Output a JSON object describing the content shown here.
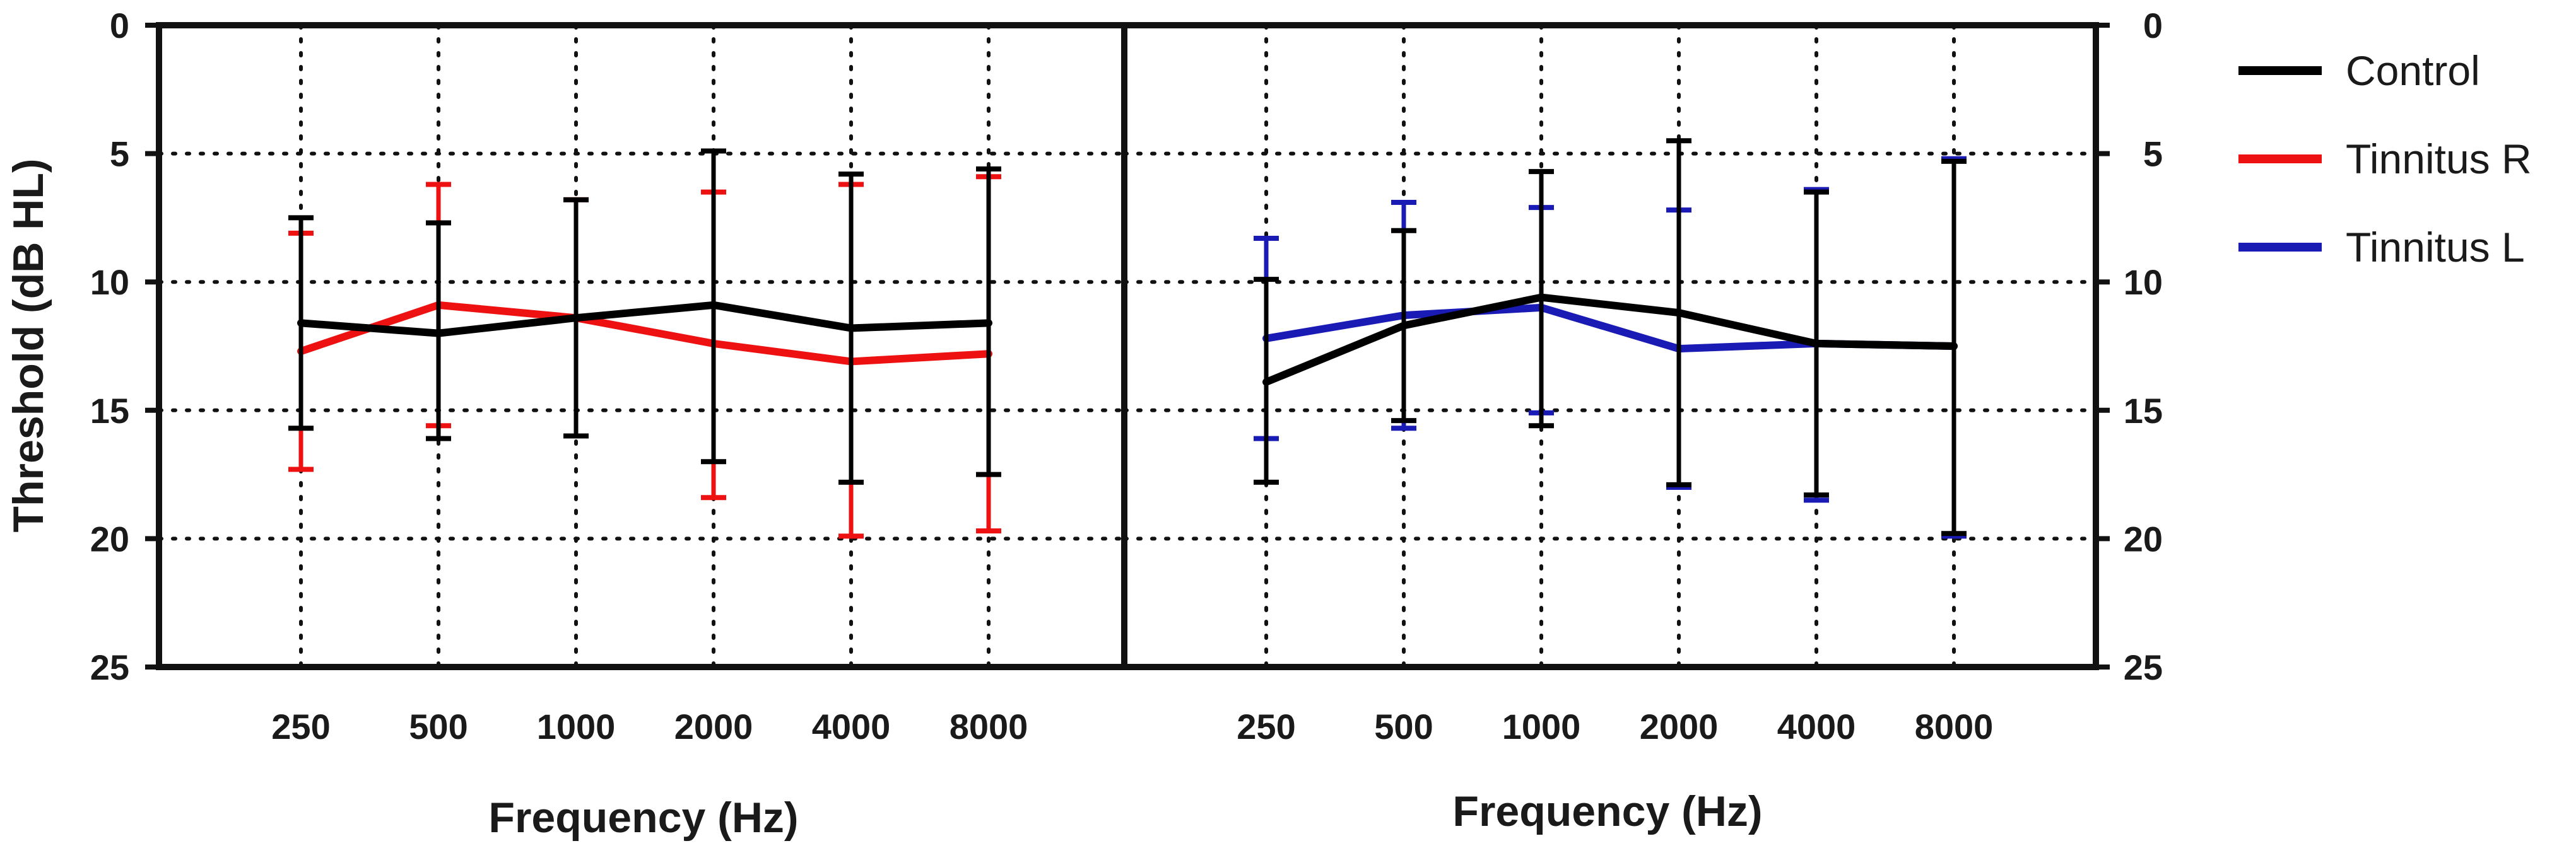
{
  "chart_data": {
    "type": "line",
    "ylabel": "Threshold (dB HL)",
    "xlabel": "Frequency (Hz)",
    "categories": [
      "250",
      "500",
      "1000",
      "2000",
      "4000",
      "8000"
    ],
    "ylim": [
      0,
      25
    ],
    "y_ticks": [
      "0",
      "5",
      "10",
      "15",
      "20",
      "25"
    ],
    "y_inverted": true,
    "grid": true,
    "legend": {
      "placement": "right",
      "entries": [
        {
          "name": "Control",
          "color": "#000000"
        },
        {
          "name": "Tinnitus R",
          "color": "#ee1111"
        },
        {
          "name": "Tinnitus L",
          "color": "#1a1ab5"
        }
      ]
    },
    "panels": [
      {
        "name": "left",
        "series": [
          {
            "name": "Tinnitus R",
            "color": "#ee1111",
            "values": [
              12.7,
              10.9,
              11.4,
              12.4,
              13.1,
              12.8
            ],
            "err_low": [
              8.1,
              6.2,
              6.8,
              6.5,
              6.2,
              5.9
            ],
            "err_high": [
              17.3,
              15.6,
              16.0,
              18.4,
              19.9,
              19.7
            ]
          },
          {
            "name": "Control",
            "color": "#000000",
            "values": [
              11.6,
              12.0,
              11.4,
              10.9,
              11.8,
              11.6
            ],
            "err_low": [
              7.5,
              7.7,
              6.8,
              4.9,
              5.8,
              5.6
            ],
            "err_high": [
              15.7,
              16.1,
              16.0,
              17.0,
              17.8,
              17.5
            ]
          }
        ]
      },
      {
        "name": "right",
        "series": [
          {
            "name": "Tinnitus L",
            "color": "#1a1ab5",
            "values": [
              12.2,
              11.3,
              11.0,
              12.6,
              12.4,
              12.5
            ],
            "err_low": [
              8.3,
              6.9,
              7.1,
              7.2,
              6.4,
              5.2
            ],
            "err_high": [
              16.1,
              15.7,
              15.1,
              18.0,
              18.5,
              19.9
            ]
          },
          {
            "name": "Control",
            "color": "#000000",
            "values": [
              13.9,
              11.7,
              10.6,
              11.2,
              12.4,
              12.5
            ],
            "err_low": [
              9.9,
              8.0,
              5.7,
              4.5,
              6.5,
              5.3
            ],
            "err_high": [
              17.8,
              15.4,
              15.6,
              17.9,
              18.3,
              19.8
            ]
          }
        ]
      }
    ]
  }
}
